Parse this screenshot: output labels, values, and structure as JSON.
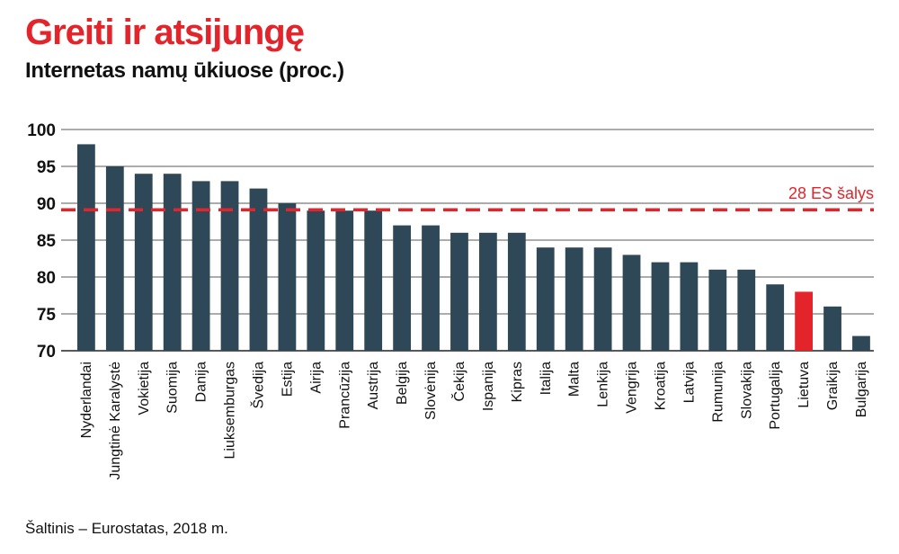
{
  "title": "Greiti ir atsijungę",
  "subtitle": "Internetas namų ūkiuose (proc.)",
  "source": "Šaltinis – Eurostatas, 2018 m.",
  "colors": {
    "title": "#e3242b",
    "bar": "#2f4858",
    "highlight": "#e3242b",
    "reference": "#e3242b",
    "grid": "#222222"
  },
  "chart_data": {
    "type": "bar",
    "title": "Internetas namų ūkiuose (proc.)",
    "categories": [
      "Nyderlandai",
      "Jungtinė Karalystė",
      "Vokietija",
      "Suomija",
      "Danija",
      "Liuksemburgas",
      "Švedija",
      "Estija",
      "Airija",
      "Prancūzija",
      "Austrija",
      "Belgija",
      "Slovėnija",
      "Čekija",
      "Ispanija",
      "Kipras",
      "Italija",
      "Malta",
      "Lenkija",
      "Vengrija",
      "Kroatija",
      "Latvija",
      "Rumunija",
      "Slovakija",
      "Portugalija",
      "Lietuva",
      "Graikija",
      "Bulgarija"
    ],
    "values": [
      98,
      95,
      94,
      94,
      93,
      93,
      92,
      90,
      89,
      89,
      89,
      87,
      87,
      86,
      86,
      86,
      84,
      84,
      84,
      83,
      82,
      82,
      81,
      81,
      79,
      78,
      76,
      72
    ],
    "highlight_category": "Lietuva",
    "reference_line": {
      "label": "28 ES šalys",
      "value": 89
    },
    "yticks": [
      70,
      75,
      80,
      85,
      90,
      95,
      100
    ],
    "ylim": [
      70,
      100
    ],
    "grid": true,
    "xlabel": "",
    "ylabel": ""
  }
}
